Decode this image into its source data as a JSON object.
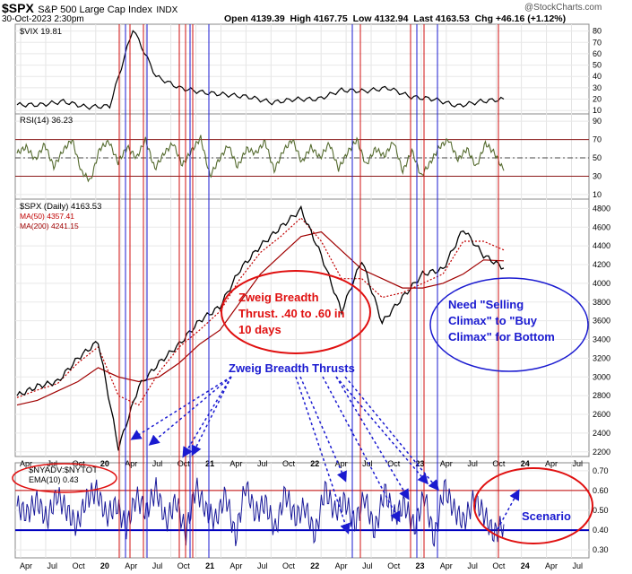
{
  "header": {
    "symbol": "$SPX",
    "name": "S&P 500 Large Cap Index",
    "exchange": "INDX",
    "date": "30-Oct-2023 2:30pm",
    "ohlc": "Open 4139.39  High 4167.75  Low 4132.94  Last 4163.53  Chg +46.16 (+1.12%)",
    "watermark": "@StockCharts.com"
  },
  "colors": {
    "red_line": "#d01010",
    "blue_line": "#1a1ad0",
    "annotation_red": "#e01010",
    "annotation_blue": "#1a1ad0",
    "rsi_line": "#556b2f",
    "ma50": "#c00000",
    "ma200": "#a00000"
  },
  "chart_data": [
    {
      "type": "line",
      "panel": "VIX",
      "legend": "$VIX 19.81",
      "yticks": [
        10,
        20,
        30,
        40,
        50,
        60,
        70,
        80
      ],
      "ylim": [
        7,
        86
      ],
      "x": [
        "2019-03",
        "2019-06",
        "2019-09",
        "2019-12",
        "2020-02",
        "2020-03",
        "2020-04",
        "2020-06",
        "2020-09",
        "2020-12",
        "2021-03",
        "2021-06",
        "2021-09",
        "2021-12",
        "2022-03",
        "2022-06",
        "2022-09",
        "2022-12",
        "2023-03",
        "2023-06",
        "2023-09",
        "2023-10"
      ],
      "values": [
        15,
        15,
        18,
        13,
        14,
        82,
        40,
        30,
        26,
        24,
        22,
        17,
        20,
        20,
        28,
        27,
        30,
        22,
        20,
        14,
        18,
        20
      ]
    },
    {
      "type": "line",
      "panel": "RSI",
      "legend": "RSI(14) 36.23",
      "yticks": [
        10,
        30,
        50,
        70,
        90
      ],
      "ylim": [
        5,
        98
      ],
      "reference_lines": [
        30,
        70
      ],
      "center_line": 50,
      "values": [
        55,
        62,
        48,
        65,
        40,
        58,
        70,
        35,
        25,
        60,
        68,
        45,
        62,
        50,
        70,
        38,
        55,
        66,
        42,
        58,
        72,
        30,
        48,
        64,
        40,
        60,
        55,
        68,
        36,
        58,
        70,
        45,
        62,
        50,
        66,
        38,
        56,
        70,
        42,
        60,
        52,
        68,
        35,
        58,
        30,
        45,
        62,
        70,
        48,
        60,
        40,
        66,
        55,
        36
      ]
    },
    {
      "type": "line",
      "panel": "SPX",
      "legend": [
        "$SPX (Daily) 4163.53",
        "MA(50) 4357.41",
        "MA(200) 4241.15"
      ],
      "yticks": [
        2200,
        2400,
        2600,
        2800,
        3000,
        3200,
        3400,
        3600,
        3800,
        4000,
        4200,
        4400,
        4600,
        4800
      ],
      "ylim": [
        2150,
        4900
      ],
      "x": [
        "2019-03",
        "2019-06",
        "2019-09",
        "2019-12",
        "2020-02",
        "2020-03",
        "2020-04",
        "2020-06",
        "2020-09",
        "2020-11",
        "2021-01",
        "2021-04",
        "2021-07",
        "2021-10",
        "2022-01",
        "2022-03",
        "2022-06",
        "2022-08",
        "2022-10",
        "2022-12",
        "2023-02",
        "2023-04",
        "2023-07",
        "2023-09",
        "2023-10"
      ],
      "close": [
        2800,
        2900,
        2950,
        3200,
        3380,
        2240,
        2900,
        3150,
        3350,
        3600,
        3750,
        4150,
        4400,
        4600,
        4790,
        4300,
        3700,
        4250,
        3580,
        3850,
        4100,
        4150,
        4580,
        4300,
        4163
      ],
      "ma50": [
        2780,
        2860,
        2930,
        3150,
        3320,
        2800,
        2700,
        3050,
        3320,
        3500,
        3700,
        4050,
        4330,
        4500,
        4700,
        4450,
        4050,
        4050,
        3850,
        3900,
        4000,
        4100,
        4450,
        4450,
        4357
      ],
      "ma200": [
        2700,
        2750,
        2850,
        2950,
        3100,
        3000,
        2950,
        3000,
        3150,
        3350,
        3500,
        3800,
        4100,
        4300,
        4500,
        4550,
        4350,
        4150,
        4050,
        3950,
        3950,
        4000,
        4100,
        4250,
        4241
      ]
    },
    {
      "type": "line",
      "panel": "NYADV",
      "legend": [
        "$NYADV:$NYTOT",
        "EMA(10) 0.43"
      ],
      "yticks": [
        0.3,
        0.4,
        0.5,
        0.6,
        0.7
      ],
      "ylim": [
        0.26,
        0.74
      ],
      "reference_lines": [
        0.4,
        0.6
      ],
      "values": [
        0.52,
        0.48,
        0.55,
        0.45,
        0.58,
        0.5,
        0.42,
        0.56,
        0.6,
        0.47,
        0.53,
        0.41,
        0.57,
        0.49,
        0.61,
        0.44,
        0.55,
        0.38,
        0.62,
        0.5,
        0.45,
        0.58,
        0.36,
        0.63,
        0.48,
        0.54,
        0.4,
        0.59,
        0.46,
        0.52,
        0.37,
        0.61,
        0.49,
        0.55,
        0.43,
        0.57,
        0.39,
        0.6,
        0.47,
        0.53,
        0.41,
        0.58,
        0.35,
        0.62,
        0.5,
        0.44,
        0.56,
        0.48,
        0.38,
        0.43
      ]
    }
  ],
  "xaxis": {
    "top_labels": [
      "Apr",
      "Jul",
      "Oct",
      "20",
      "Apr",
      "Jul",
      "Oct",
      "21",
      "Apr",
      "Jul",
      "Oct",
      "22",
      "Apr",
      "Jul",
      "Oct",
      "23",
      "Apr",
      "Jul",
      "Oct",
      "24",
      "Apr",
      "Jul"
    ],
    "bottom_labels": [
      "Apr",
      "Jul",
      "Oct",
      "20",
      "Apr",
      "Jul",
      "Oct",
      "21",
      "Apr",
      "Jul",
      "Oct",
      "22",
      "Apr",
      "Jul",
      "Oct",
      "23",
      "Apr",
      "Jul",
      "Oct",
      "24",
      "Apr",
      "Jul"
    ]
  },
  "annotations": {
    "ellipse1_text": [
      "Zweig Breadth",
      "Thrust. .40 to .60 in",
      "10 days"
    ],
    "ellipse2_text": [
      "Need \"Selling",
      "Climax\" to \"Buy",
      "Climax\" for Bottom"
    ],
    "thrusts_label": "Zweig Breadth Thrusts",
    "scenario_label": "Scenario"
  }
}
